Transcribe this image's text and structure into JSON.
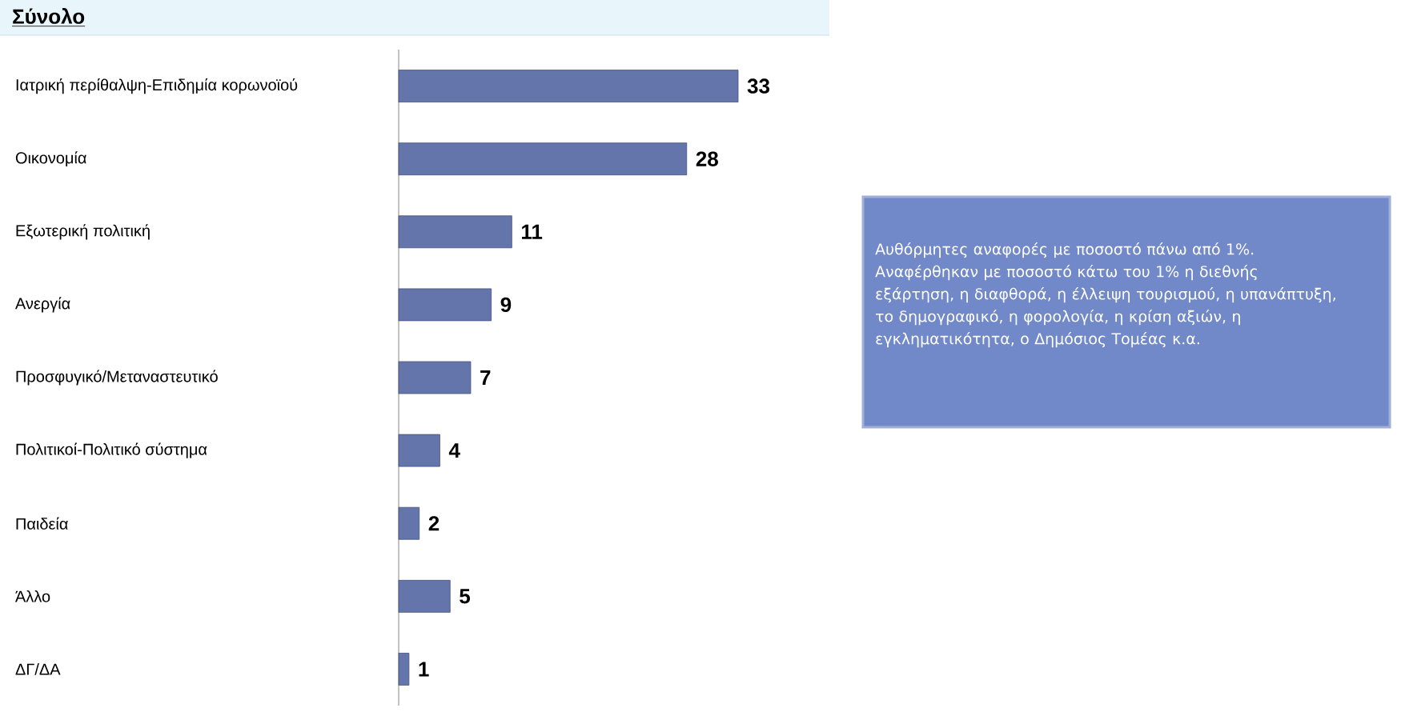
{
  "chart_data": {
    "type": "bar",
    "orientation": "horizontal",
    "title": "Σύνολο",
    "categories": [
      "Ιατρική περίθαλψη-Επιδημία κορωνοϊού",
      "Οικονομία",
      "Εξωτερική πολιτική",
      "Ανεργία",
      "Προσφυγικό/Μεταναστευτικό",
      "Πολιτικοί-Πολιτικό σύστημα",
      "Παιδεία",
      "Άλλο",
      "ΔΓ/ΔΑ"
    ],
    "values": [
      33,
      28,
      11,
      9,
      7,
      4,
      2,
      5,
      1
    ],
    "color": "#6475ab",
    "data_labels": true,
    "tick_labels": "y",
    "annotations": [
      "Αυθόρμητες αναφορές με ποσοστό πάνω από 1%. Αναφέρθηκαν με ποσοστό κάτω του 1% η διεθνής εξάρτηση, η διαφθορά, η έλλειψη τουρισμού, η υπανάπτυξη, το δημογραφικό, η φορολογία, η κρίση αξιών, η εγκληματικότητα, ο Δημόσιος Τομέας κ.α."
    ]
  }
}
